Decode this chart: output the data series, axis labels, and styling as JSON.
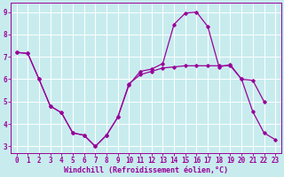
{
  "xlabel": "Windchill (Refroidissement éolien,°C)",
  "background_color": "#c8ecee",
  "line_color": "#990099",
  "grid_color": "#ffffff",
  "x_min": -0.5,
  "x_max": 23.5,
  "y_min": 2.7,
  "y_max": 9.4,
  "series1_x": [
    0,
    1,
    2,
    3,
    4,
    5,
    6,
    7,
    8,
    9,
    10,
    11,
    12,
    13,
    14,
    15,
    16,
    17,
    18,
    19,
    20,
    21,
    22,
    23
  ],
  "series1_y": [
    7.2,
    7.15,
    6.0,
    4.8,
    4.5,
    3.6,
    3.5,
    3.0,
    3.5,
    4.3,
    5.8,
    6.2,
    6.35,
    6.5,
    6.55,
    6.6,
    6.6,
    6.6,
    6.6,
    6.6,
    6.0,
    4.55,
    3.6,
    3.3
  ],
  "series2_x": [
    0,
    1,
    2,
    3,
    4,
    5,
    6,
    7,
    8,
    9,
    10,
    11,
    12,
    13,
    14,
    15,
    16,
    17,
    18,
    19,
    20,
    21,
    22
  ],
  "series2_y": [
    7.2,
    7.15,
    6.0,
    4.8,
    4.5,
    3.6,
    3.5,
    3.0,
    3.5,
    4.3,
    5.75,
    6.35,
    6.45,
    6.7,
    8.45,
    8.95,
    9.0,
    8.35,
    6.55,
    6.65,
    6.0,
    5.95,
    5.0
  ],
  "yticks": [
    3,
    4,
    5,
    6,
    7,
    8,
    9
  ],
  "xticks": [
    0,
    1,
    2,
    3,
    4,
    5,
    6,
    7,
    8,
    9,
    10,
    11,
    12,
    13,
    14,
    15,
    16,
    17,
    18,
    19,
    20,
    21,
    22,
    23
  ],
  "tick_fontsize": 5.5,
  "xlabel_fontsize": 6.0,
  "marker": "D",
  "marker_size": 1.8,
  "line_width": 0.9
}
